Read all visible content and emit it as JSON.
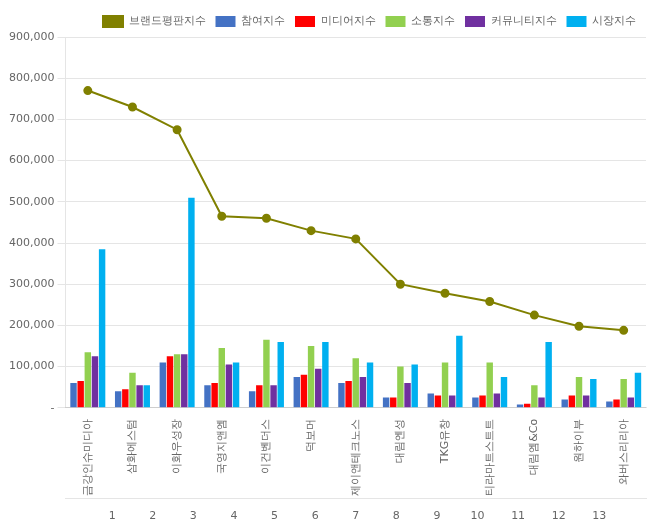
{
  "chart_data": {
    "type": "bar",
    "categories": [
      "금강인슈미디아",
      "삼화에스텀",
      "이화우성장",
      "국영지앤엠",
      "이건벤더스",
      "덕보머",
      "제이앤테크노스",
      "대림엔성",
      "TKG유창",
      "티라마트스트트",
      "대림엠&Co",
      "원하이부",
      "와버스리리아"
    ],
    "series": [
      {
        "name": "참여지수",
        "type": "bar",
        "color": "#4472C4",
        "values": [
          60000,
          40000,
          110000,
          55000,
          40000,
          75000,
          60000,
          25000,
          35000,
          25000,
          8000,
          20000,
          15000
        ]
      },
      {
        "name": "미디어지수",
        "type": "bar",
        "color": "#FF0000",
        "values": [
          65000,
          45000,
          125000,
          60000,
          55000,
          80000,
          65000,
          25000,
          30000,
          30000,
          10000,
          30000,
          20000
        ]
      },
      {
        "name": "소통지수",
        "type": "bar",
        "color": "#92D050",
        "values": [
          135000,
          85000,
          130000,
          145000,
          165000,
          150000,
          120000,
          100000,
          110000,
          110000,
          55000,
          75000,
          70000
        ]
      },
      {
        "name": "커뮤니티지수",
        "type": "bar",
        "color": "#7030A0",
        "values": [
          125000,
          55000,
          130000,
          105000,
          55000,
          95000,
          75000,
          60000,
          30000,
          35000,
          25000,
          30000,
          25000
        ]
      },
      {
        "name": "시장지수",
        "type": "bar",
        "color": "#00B0F0",
        "values": [
          385000,
          55000,
          510000,
          110000,
          160000,
          160000,
          110000,
          105000,
          175000,
          75000,
          160000,
          70000,
          85000
        ]
      },
      {
        "name": "브랜드평판지수",
        "type": "line",
        "color": "#808000",
        "marker": "circle",
        "values": [
          770000,
          730000,
          675000,
          465000,
          460000,
          430000,
          410000,
          300000,
          278000,
          258000,
          225000,
          198000,
          188000
        ]
      }
    ],
    "ylim": [
      0,
      900000
    ],
    "yticks": [
      {
        "value": 0,
        "label": "-"
      },
      {
        "value": 100000,
        "label": "100,000"
      },
      {
        "value": 200000,
        "label": "200,000"
      },
      {
        "value": 300000,
        "label": "300,000"
      },
      {
        "value": 400000,
        "label": "400,000"
      },
      {
        "value": 500000,
        "label": "500,000"
      },
      {
        "value": 600000,
        "label": "600,000"
      },
      {
        "value": 700000,
        "label": "700,000"
      },
      {
        "value": 800000,
        "label": "800,000"
      },
      {
        "value": 900000,
        "label": "900,000"
      }
    ],
    "x2lim": [
      0.4,
      13.6
    ],
    "x2ticks": [
      1,
      2,
      3,
      4,
      5,
      6,
      7,
      8,
      9,
      10,
      11,
      12,
      13
    ],
    "grid": "y",
    "legend": "upper right"
  }
}
